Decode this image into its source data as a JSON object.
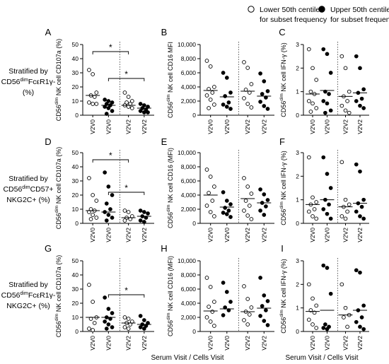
{
  "legend": {
    "open_label_1": "Lower 50th centile",
    "open_label_2": "for subset frequency",
    "filled_label_1": "Upper 50th centile",
    "filled_label_2": "for subset frequency"
  },
  "rows": [
    {
      "label": [
        "Stratified by",
        "CD56dimFcεR1γ-",
        "(%)"
      ]
    },
    {
      "label": [
        "Stratified by",
        "CD56dimCD57+",
        "NKG2C+ (%)"
      ]
    },
    {
      "label": [
        "Stratified by",
        "CD56dimFcεR1γ-",
        "NKG2C+ (%)"
      ]
    }
  ],
  "x_footer": "Serum Visit / Cells Visit",
  "chart_data": [
    {
      "panel": "A",
      "type": "scatter",
      "ylabel": "CD56dim NK cell CD107a (%)",
      "ylim": [
        0,
        50
      ],
      "yticks": [
        0,
        10,
        20,
        30,
        40,
        50
      ],
      "categories": [
        "V2V0",
        "V2V0",
        "V2V2",
        "V2V2"
      ],
      "fill": [
        "open",
        "filled",
        "open",
        "filled"
      ],
      "medians": [
        14,
        7,
        7,
        5
      ],
      "values": [
        [
          32,
          29,
          16,
          14,
          13,
          9,
          8,
          8
        ],
        [
          11,
          10,
          9,
          8,
          7,
          6,
          5,
          3,
          1
        ],
        [
          16,
          13,
          10,
          9,
          8,
          7,
          6,
          5
        ],
        [
          8,
          7,
          6,
          5,
          4,
          3,
          2,
          2
        ]
      ],
      "brackets": [
        {
          "from": 0,
          "to": 2,
          "level": 45,
          "label": "*"
        },
        {
          "from": 1,
          "to": 3,
          "level": 26,
          "label": "*"
        }
      ]
    },
    {
      "panel": "B",
      "type": "scatter",
      "ylabel": "CD56dim NK cell CD16 MFI",
      "ylim": [
        0,
        10000
      ],
      "yticks": [
        0,
        2000,
        4000,
        6000,
        8000,
        10000
      ],
      "categories": [
        "V2V0",
        "V2V0",
        "V2V2",
        "V2V2"
      ],
      "fill": [
        "open",
        "filled",
        "open",
        "filled"
      ],
      "medians": [
        3500,
        2600,
        3400,
        2700
      ],
      "values": [
        [
          7700,
          6900,
          4000,
          3700,
          3200,
          2800,
          2200,
          1500,
          1000
        ],
        [
          6000,
          5300,
          3200,
          2700,
          1800,
          1500,
          1200,
          900
        ],
        [
          7500,
          6700,
          4400,
          3600,
          3200,
          2400,
          1600,
          1100
        ],
        [
          5900,
          4800,
          3400,
          3000,
          2500,
          1900,
          1300,
          900
        ]
      ],
      "brackets": []
    },
    {
      "panel": "C",
      "type": "scatter",
      "ylabel": "CD56dim NK cell IFN-γ (%)",
      "ylim": [
        0,
        3
      ],
      "yticks": [
        0,
        1,
        2,
        3
      ],
      "categories": [
        "V2V0",
        "V2V0",
        "V2V2",
        "V2V2"
      ],
      "fill": [
        "open",
        "filled",
        "open",
        "filled"
      ],
      "medians": [
        0.9,
        1.05,
        0.8,
        0.95
      ],
      "values": [
        [
          2.8,
          2.0,
          1.5,
          1.0,
          0.9,
          0.6,
          0.5,
          0.3,
          0.15
        ],
        [
          2.8,
          2.6,
          1.8,
          1.0,
          0.9,
          0.6,
          0.5,
          0.2,
          0.1
        ],
        [
          2.5,
          2.0,
          1.0,
          0.8,
          0.6,
          0.4,
          0.2,
          0.1
        ],
        [
          2.5,
          2.0,
          1.1,
          0.95,
          0.7,
          0.6,
          0.4,
          0.3
        ]
      ],
      "brackets": []
    },
    {
      "panel": "D",
      "type": "scatter",
      "ylabel": "CD56dim NK cell CD107a (%)",
      "ylim": [
        0,
        50
      ],
      "yticks": [
        0,
        10,
        20,
        30,
        40,
        50
      ],
      "categories": [
        "V2V0",
        "V2V0",
        "V2V2",
        "V2V2"
      ],
      "fill": [
        "open",
        "filled",
        "open",
        "filled"
      ],
      "medians": [
        9,
        8,
        4,
        5
      ],
      "values": [
        [
          32,
          20,
          16,
          10,
          9,
          8,
          6,
          4,
          3
        ],
        [
          36,
          26,
          20,
          14,
          10,
          8,
          6,
          4,
          2
        ],
        [
          9,
          8,
          5,
          4,
          3,
          2
        ],
        [
          9,
          8,
          7,
          5,
          4,
          2,
          1
        ]
      ],
      "brackets": [
        {
          "from": 0,
          "to": 2,
          "level": 45,
          "label": "*"
        },
        {
          "from": 1,
          "to": 3,
          "level": 22,
          "label": "*"
        }
      ]
    },
    {
      "panel": "E",
      "type": "scatter",
      "ylabel": "CD56dim NK cell CD16 (MFI)",
      "ylim": [
        0,
        10000
      ],
      "yticks": [
        0,
        2000,
        4000,
        6000,
        8000,
        10000
      ],
      "categories": [
        "V2V0",
        "V2V0",
        "V2V2",
        "V2V2"
      ],
      "fill": [
        "open",
        "filled",
        "open",
        "filled"
      ],
      "medians": [
        4000,
        2300,
        3500,
        2900
      ],
      "values": [
        [
          7600,
          6600,
          5200,
          4300,
          3200,
          2500,
          1600,
          1000
        ],
        [
          4400,
          3200,
          2700,
          2200,
          1800,
          1500,
          1300,
          900
        ],
        [
          6400,
          5200,
          4200,
          3200,
          2500,
          1800,
          1100,
          600
        ],
        [
          4800,
          4100,
          3300,
          2900,
          2400,
          1800,
          1200
        ]
      ],
      "brackets": []
    },
    {
      "panel": "F",
      "type": "scatter",
      "ylabel": "CD56dim NK cell IFN-γ (%)",
      "ylim": [
        0,
        3
      ],
      "yticks": [
        0,
        1,
        2,
        3
      ],
      "categories": [
        "V2V0",
        "V2V0",
        "V2V2",
        "V2V2"
      ],
      "fill": [
        "open",
        "filled",
        "open",
        "filled"
      ],
      "medians": [
        0.8,
        1.0,
        0.7,
        0.85
      ],
      "values": [
        [
          2.8,
          1.1,
          0.9,
          0.8,
          0.6,
          0.5,
          0.3,
          0.2
        ],
        [
          2.8,
          2.1,
          1.5,
          1.0,
          0.8,
          0.6,
          0.4,
          0.2
        ],
        [
          2.6,
          1.0,
          0.8,
          0.7,
          0.5,
          0.3,
          0.2
        ],
        [
          2.5,
          2.2,
          1.0,
          0.85,
          0.7,
          0.5,
          0.3,
          0.2
        ]
      ],
      "brackets": []
    },
    {
      "panel": "G",
      "type": "scatter",
      "ylabel": "CD56dim NK cell CD107a (%)",
      "ylim": [
        0,
        50
      ],
      "yticks": [
        0,
        10,
        20,
        30,
        40,
        50
      ],
      "categories": [
        "V2V0",
        "V2V0",
        "V2V2",
        "V2V2"
      ],
      "fill": [
        "open",
        "filled",
        "open",
        "filled"
      ],
      "medians": [
        10,
        10,
        6,
        5
      ],
      "values": [
        [
          33,
          21,
          10,
          9,
          6,
          2,
          1
        ],
        [
          24,
          16,
          13,
          10,
          9,
          7,
          5,
          3,
          2
        ],
        [
          10,
          9,
          7,
          6,
          5,
          3,
          2
        ],
        [
          11,
          8,
          6,
          5,
          4,
          3,
          2
        ]
      ],
      "brackets": [
        {
          "from": 1,
          "to": 3,
          "level": 26,
          "label": "*"
        }
      ]
    },
    {
      "panel": "H",
      "type": "scatter",
      "ylabel": "CD56dim NK cell CD16 (MFI)",
      "ylim": [
        0,
        10000
      ],
      "yticks": [
        0,
        2000,
        4000,
        6000,
        8000,
        10000
      ],
      "categories": [
        "V2V0",
        "V2V0",
        "V2V2",
        "V2V2"
      ],
      "fill": [
        "open",
        "filled",
        "open",
        "filled"
      ],
      "medians": [
        2900,
        3200,
        2800,
        3300
      ],
      "values": [
        [
          7600,
          6300,
          4200,
          3500,
          2800,
          2000,
          1400,
          800
        ],
        [
          6900,
          5600,
          4200,
          3400,
          3000,
          2300
        ],
        [
          6400,
          4600,
          3400,
          2800,
          2400,
          1600,
          1000
        ],
        [
          7600,
          5100,
          4300,
          3600,
          3000,
          2200,
          1500,
          900
        ]
      ],
      "brackets": []
    },
    {
      "panel": "I",
      "type": "scatter",
      "ylabel": "CD56dim NK cell IFN-γ (%)",
      "ylim": [
        0,
        3
      ],
      "yticks": [
        0,
        1,
        2,
        3
      ],
      "categories": [
        "V2V0",
        "V2V0",
        "V2V2",
        "V2V2"
      ],
      "fill": [
        "open",
        "filled",
        "open",
        "filled"
      ],
      "medians": [
        0.85,
        0.9,
        0.7,
        0.9
      ],
      "values": [
        [
          2.0,
          1.4,
          1.1,
          0.9,
          0.8,
          0.5,
          0.3,
          0.15
        ],
        [
          2.8,
          2.7,
          1.6,
          0.3,
          0.2,
          0.15,
          0.1
        ],
        [
          2.0,
          1.0,
          0.7,
          0.6,
          0.2
        ],
        [
          2.6,
          2.5,
          1.1,
          0.9,
          0.6,
          0.4,
          0.2,
          0.1
        ]
      ],
      "brackets": []
    }
  ]
}
